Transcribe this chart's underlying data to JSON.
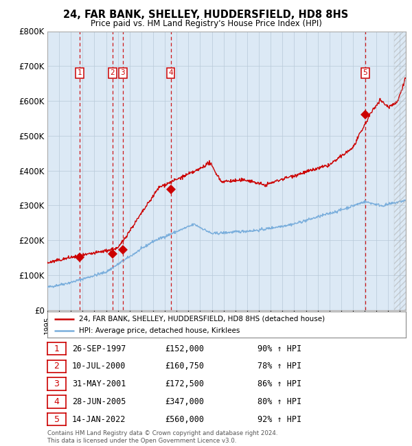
{
  "title": "24, FAR BANK, SHELLEY, HUDDERSFIELD, HD8 8HS",
  "subtitle": "Price paid vs. HM Land Registry's House Price Index (HPI)",
  "ylim": [
    0,
    800000
  ],
  "yticks": [
    0,
    100000,
    200000,
    300000,
    400000,
    500000,
    600000,
    700000,
    800000
  ],
  "ytick_labels": [
    "£0",
    "£100K",
    "£200K",
    "£300K",
    "£400K",
    "£500K",
    "£600K",
    "£700K",
    "£800K"
  ],
  "xlim_start": 1995.0,
  "xlim_end": 2025.5,
  "sale_points": [
    {
      "label": 1,
      "date_num": 1997.74,
      "price": 152000,
      "date_str": "26-SEP-1997",
      "pct": "90%"
    },
    {
      "label": 2,
      "date_num": 2000.53,
      "price": 160750,
      "date_str": "10-JUL-2000",
      "pct": "78%"
    },
    {
      "label": 3,
      "date_num": 2001.41,
      "price": 172500,
      "date_str": "31-MAY-2001",
      "pct": "86%"
    },
    {
      "label": 4,
      "date_num": 2005.49,
      "price": 347000,
      "date_str": "28-JUN-2005",
      "pct": "80%"
    },
    {
      "label": 5,
      "date_num": 2022.04,
      "price": 560000,
      "date_str": "14-JAN-2022",
      "pct": "92%"
    }
  ],
  "line_color_red": "#cc0000",
  "line_color_blue": "#7aaedc",
  "marker_color": "#cc0000",
  "vline_color": "#cc0000",
  "background_color": "#ffffff",
  "plot_bg_color": "#dce9f5",
  "grid_color": "#b8c8d8",
  "label_box_color": "#cc0000",
  "footnote": "Contains HM Land Registry data © Crown copyright and database right 2024.\nThis data is licensed under the Open Government Licence v3.0.",
  "legend_line1": "24, FAR BANK, SHELLEY, HUDDERSFIELD, HD8 8HS (detached house)",
  "legend_line2": "HPI: Average price, detached house, Kirklees",
  "sale_rows": [
    {
      "num": "1",
      "date": "26-SEP-1997",
      "price": "£152,000",
      "pct": "90% ↑ HPI"
    },
    {
      "num": "2",
      "date": "10-JUL-2000",
      "price": "£160,750",
      "pct": "78% ↑ HPI"
    },
    {
      "num": "3",
      "date": "31-MAY-2001",
      "price": "£172,500",
      "pct": "86% ↑ HPI"
    },
    {
      "num": "4",
      "date": "28-JUN-2005",
      "price": "£347,000",
      "pct": "80% ↑ HPI"
    },
    {
      "num": "5",
      "date": "14-JAN-2022",
      "price": "£560,000",
      "pct": "92% ↑ HPI"
    }
  ]
}
